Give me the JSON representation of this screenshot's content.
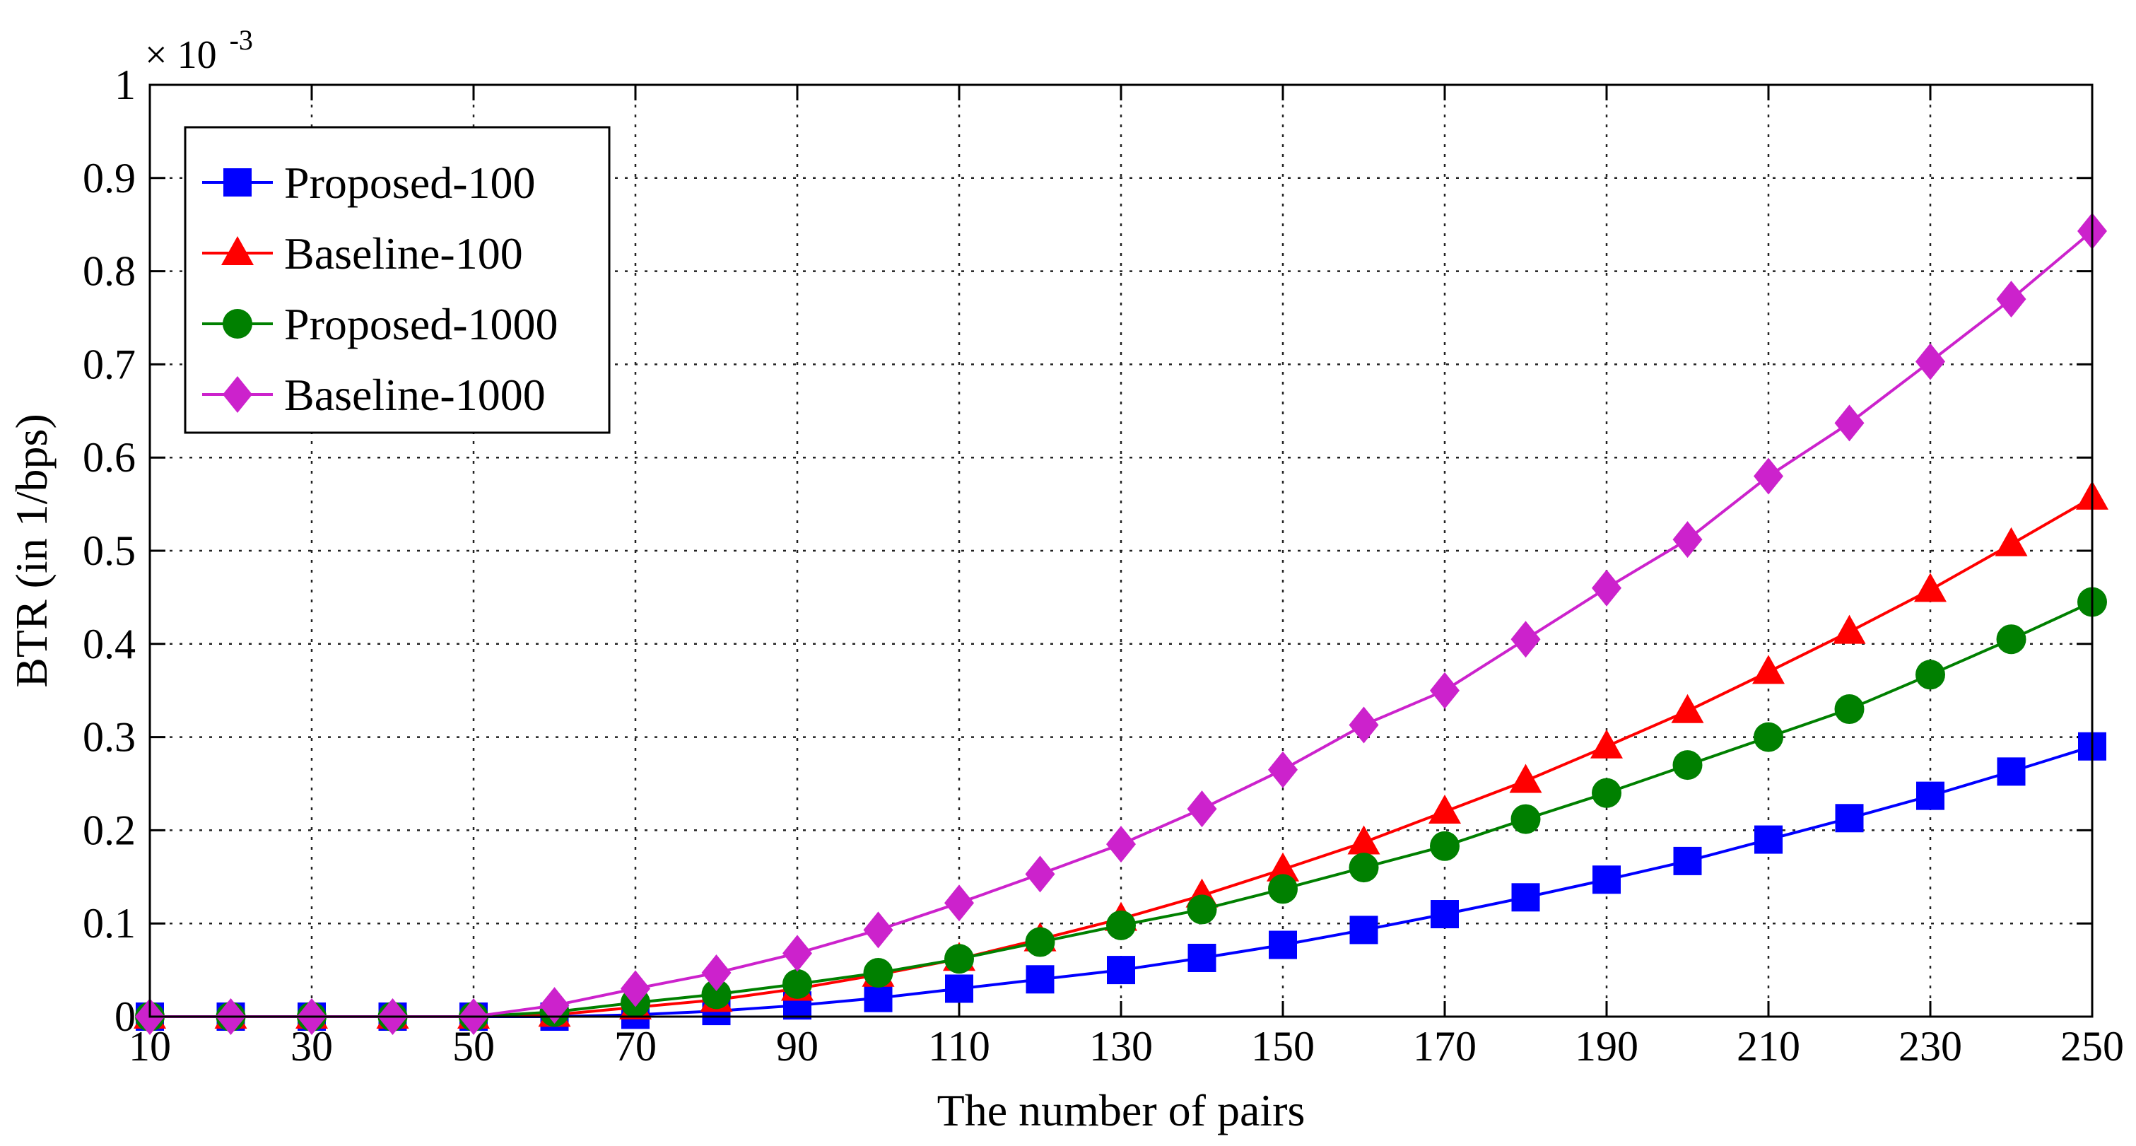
{
  "chart_data": {
    "type": "line",
    "title": "",
    "xlabel": "The number of pairs",
    "ylabel": "BTR (in 1/bps)",
    "y_multiplier_base": "× 10",
    "y_multiplier_exp": "-3",
    "xlim": [
      10,
      250
    ],
    "ylim": [
      0,
      1
    ],
    "grid": true,
    "legend_position": "top-left",
    "x_tick_labels": [
      "10",
      "30",
      "50",
      "70",
      "90",
      "110",
      "130",
      "150",
      "170",
      "190",
      "210",
      "230",
      "250"
    ],
    "y_tick_labels": [
      "0",
      "0.1",
      "0.2",
      "0.3",
      "0.4",
      "0.5",
      "0.6",
      "0.7",
      "0.8",
      "0.9",
      "1"
    ],
    "x": [
      10,
      20,
      30,
      40,
      50,
      60,
      70,
      80,
      90,
      100,
      110,
      120,
      130,
      140,
      150,
      160,
      170,
      180,
      190,
      200,
      210,
      220,
      230,
      240,
      250
    ],
    "series": [
      {
        "name": "Proposed-100",
        "color": "#0000ff",
        "marker": "square",
        "values": [
          0,
          0,
          0,
          0,
          0,
          0,
          0.002,
          0.006,
          0.012,
          0.02,
          0.03,
          0.04,
          0.05,
          0.063,
          0.077,
          0.093,
          0.11,
          0.128,
          0.147,
          0.167,
          0.19,
          0.213,
          0.237,
          0.263,
          0.29
        ]
      },
      {
        "name": "Baseline-100",
        "color": "#ff0000",
        "marker": "triangle",
        "values": [
          0,
          0,
          0,
          0,
          0,
          0.002,
          0.01,
          0.018,
          0.03,
          0.045,
          0.062,
          0.083,
          0.105,
          0.13,
          0.158,
          0.187,
          0.22,
          0.253,
          0.29,
          0.328,
          0.37,
          0.413,
          0.458,
          0.507,
          0.557
        ]
      },
      {
        "name": "Proposed-1000",
        "color": "#008000",
        "marker": "circle",
        "values": [
          0,
          0,
          0,
          0,
          0,
          0.005,
          0.015,
          0.024,
          0.035,
          0.047,
          0.062,
          0.08,
          0.098,
          0.115,
          0.137,
          0.16,
          0.183,
          0.212,
          0.24,
          0.27,
          0.3,
          0.33,
          0.367,
          0.405,
          0.445
        ]
      },
      {
        "name": "Baseline-1000",
        "color": "#cc22cc",
        "marker": "diamond",
        "values": [
          0,
          0,
          0,
          0,
          0,
          0.012,
          0.03,
          0.047,
          0.068,
          0.093,
          0.122,
          0.153,
          0.185,
          0.223,
          0.265,
          0.313,
          0.35,
          0.405,
          0.46,
          0.512,
          0.58,
          0.637,
          0.703,
          0.77,
          0.843
        ]
      }
    ]
  }
}
